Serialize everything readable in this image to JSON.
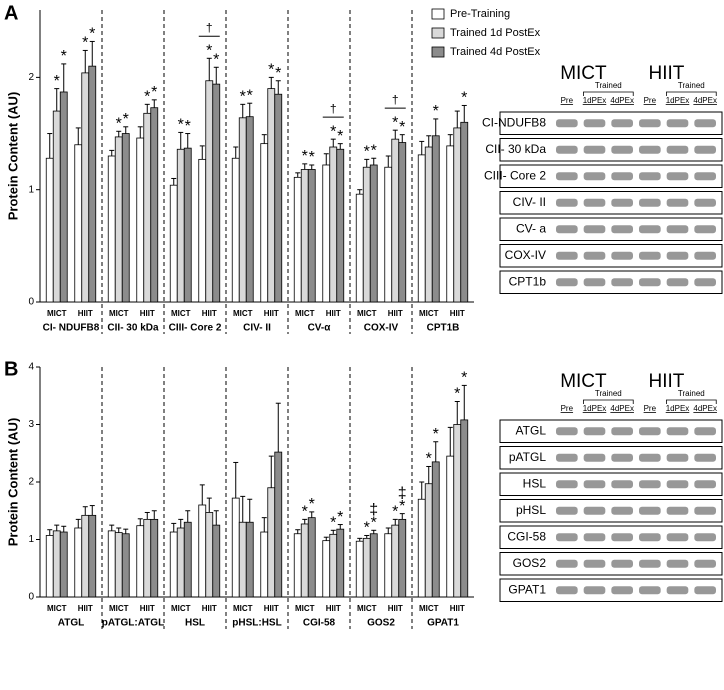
{
  "chart_data": [
    {
      "type": "bar",
      "panel": "A",
      "ylabel": "Protein Content (AU)",
      "ylim": [
        0,
        2.6
      ],
      "yticks": [
        0,
        1,
        2
      ],
      "legend": "top-right",
      "groups": [
        "CI- NDUFB8",
        "CII- 30 kDa",
        "CIII- Core 2",
        "CIV- II",
        "CV-α",
        "COX-IV",
        "CPT1B"
      ],
      "categories": [
        "MICT",
        "HIIT",
        "MICT",
        "HIIT",
        "MICT",
        "HIIT",
        "MICT",
        "HIIT",
        "MICT",
        "HIIT",
        "MICT",
        "HIIT",
        "MICT",
        "HIIT"
      ],
      "series": [
        {
          "name": "Pre-Training",
          "color": "#ffffff",
          "values": [
            1.28,
            1.4,
            1.3,
            1.46,
            1.04,
            1.27,
            1.28,
            1.41,
            1.11,
            1.22,
            0.96,
            1.2,
            1.31,
            1.39
          ],
          "errors": [
            0.22,
            0.15,
            0.05,
            0.1,
            0.06,
            0.12,
            0.1,
            0.08,
            0.04,
            0.1,
            0.04,
            0.1,
            0.12,
            0.1
          ],
          "markers": [
            null,
            null,
            null,
            null,
            null,
            null,
            null,
            null,
            null,
            null,
            null,
            null,
            null,
            null
          ]
        },
        {
          "name": "Trained 1d PostEx",
          "color": "#d9d9d9",
          "values": [
            1.7,
            2.04,
            1.47,
            1.68,
            1.36,
            1.97,
            1.64,
            1.9,
            1.18,
            1.38,
            1.2,
            1.45,
            1.38,
            1.55
          ],
          "errors": [
            0.2,
            0.2,
            0.05,
            0.08,
            0.15,
            0.2,
            0.12,
            0.1,
            0.05,
            0.07,
            0.07,
            0.08,
            0.1,
            0.15
          ],
          "markers": [
            [
              "*"
            ],
            [
              "*"
            ],
            [
              "*"
            ],
            [
              "*"
            ],
            [
              "*"
            ],
            [
              "*"
            ],
            [
              "*"
            ],
            [
              "*"
            ],
            [
              "*"
            ],
            [
              "*"
            ],
            [
              "*"
            ],
            [
              "*"
            ],
            null,
            null
          ]
        },
        {
          "name": "Trained 4d PostEx",
          "color": "#8c8c8c",
          "values": [
            1.87,
            2.1,
            1.5,
            1.73,
            1.37,
            1.94,
            1.65,
            1.85,
            1.18,
            1.36,
            1.22,
            1.42,
            1.48,
            1.6
          ],
          "errors": [
            0.25,
            0.22,
            0.06,
            0.07,
            0.13,
            0.15,
            0.12,
            0.12,
            0.04,
            0.05,
            0.06,
            0.07,
            0.15,
            0.15
          ],
          "markers": [
            [
              "*"
            ],
            [
              "*"
            ],
            [
              "*"
            ],
            [
              "*"
            ],
            [
              "*"
            ],
            [
              "*"
            ],
            [
              "*"
            ],
            [
              "*"
            ],
            [
              "*"
            ],
            [
              "*"
            ],
            [
              "*"
            ],
            [
              "*"
            ],
            [
              "*"
            ],
            [
              "*"
            ]
          ]
        }
      ],
      "brackets": [
        {
          "category": 5,
          "label": "†"
        },
        {
          "category": 9,
          "label": "†"
        },
        {
          "category": 11,
          "label": "†"
        }
      ]
    },
    {
      "type": "bar",
      "panel": "B",
      "ylabel": "Protein Content (AU)",
      "ylim": [
        0,
        4
      ],
      "yticks": [
        0,
        1,
        2,
        3,
        4
      ],
      "groups": [
        "ATGL",
        "pATGL:ATGL",
        "HSL",
        "pHSL:HSL",
        "CGI-58",
        "GOS2",
        "GPAT1"
      ],
      "categories": [
        "MICT",
        "HIIT",
        "MICT",
        "HIIT",
        "MICT",
        "HIIT",
        "MICT",
        "HIIT",
        "MICT",
        "HIIT",
        "MICT",
        "HIIT",
        "MICT",
        "HIIT"
      ],
      "series": [
        {
          "name": "Pre-Training",
          "color": "#ffffff",
          "values": [
            1.07,
            1.2,
            1.15,
            1.24,
            1.13,
            1.6,
            1.72,
            1.13,
            1.1,
            0.98,
            0.97,
            1.1,
            1.7,
            2.45
          ],
          "errors": [
            0.1,
            0.15,
            0.1,
            0.12,
            0.15,
            0.35,
            0.62,
            0.25,
            0.07,
            0.06,
            0.05,
            0.1,
            0.3,
            0.5
          ],
          "markers": [
            null,
            null,
            null,
            null,
            null,
            null,
            null,
            null,
            null,
            null,
            null,
            null,
            null,
            null
          ]
        },
        {
          "name": "Trained 1d PostEx",
          "color": "#d9d9d9",
          "values": [
            1.15,
            1.42,
            1.12,
            1.35,
            1.2,
            1.47,
            1.3,
            1.9,
            1.27,
            1.09,
            1.02,
            1.25,
            1.97,
            3.0
          ],
          "errors": [
            0.1,
            0.15,
            0.08,
            0.12,
            0.15,
            0.25,
            0.45,
            0.55,
            0.08,
            0.07,
            0.05,
            0.1,
            0.3,
            0.4
          ],
          "markers": [
            null,
            null,
            null,
            null,
            null,
            null,
            null,
            null,
            [
              "*"
            ],
            [
              "*"
            ],
            [
              "*"
            ],
            [
              "*"
            ],
            [
              "*"
            ],
            [
              "*"
            ]
          ]
        },
        {
          "name": "Trained 4d PostEx",
          "color": "#8c8c8c",
          "values": [
            1.13,
            1.42,
            1.1,
            1.35,
            1.3,
            1.25,
            1.3,
            2.52,
            1.38,
            1.18,
            1.1,
            1.35,
            2.35,
            3.08
          ],
          "errors": [
            0.1,
            0.17,
            0.08,
            0.15,
            0.2,
            0.25,
            0.4,
            0.85,
            0.1,
            0.08,
            0.06,
            0.1,
            0.35,
            0.6
          ],
          "markers": [
            null,
            null,
            null,
            null,
            null,
            null,
            null,
            null,
            [
              "*"
            ],
            [
              "*"
            ],
            [
              "*",
              "‡"
            ],
            [
              "*",
              "‡"
            ],
            [
              "*"
            ],
            [
              "*"
            ]
          ]
        }
      ]
    }
  ],
  "blots": [
    {
      "groups": [
        "MICT",
        "HIIT"
      ],
      "trained": "Trained",
      "lanes": [
        "Pre",
        "1dPEx",
        "4dPEx",
        "Pre",
        "1dPEx",
        "4dPEx"
      ],
      "rows": [
        "CI-NDUFB8",
        "CII- 30 kDa",
        "CIII- Core 2",
        "CIV- II",
        "CV- a",
        "COX-IV",
        "CPT1b"
      ]
    },
    {
      "groups": [
        "MICT",
        "HIIT"
      ],
      "trained": "Trained",
      "lanes": [
        "Pre",
        "1dPEx",
        "4dPEx",
        "Pre",
        "1dPEx",
        "4dPEx"
      ],
      "rows": [
        "ATGL",
        "pATGL",
        "HSL",
        "pHSL",
        "CGI-58",
        "GOS2",
        "GPAT1"
      ]
    }
  ]
}
